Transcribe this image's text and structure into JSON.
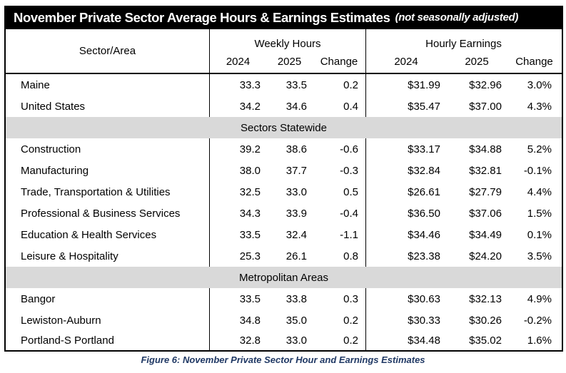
{
  "title": {
    "main": "November Private Sector Average Hours & Earnings Estimates",
    "note": "(not seasonally adjusted)"
  },
  "header": {
    "sector_area": "Sector/Area",
    "weekly_hours": "Weekly Hours",
    "hourly_earnings": "Hourly Earnings",
    "sub": [
      "2024",
      "2025",
      "Change"
    ]
  },
  "sections": [
    {
      "heading": null,
      "rows": [
        {
          "name": "Maine",
          "weekly": [
            "33.3",
            "33.5",
            "0.2"
          ],
          "earnings": [
            "$31.99",
            "$32.96",
            "3.0%"
          ]
        },
        {
          "name": "United States",
          "weekly": [
            "34.2",
            "34.6",
            "0.4"
          ],
          "earnings": [
            "$35.47",
            "$37.00",
            "4.3%"
          ]
        }
      ]
    },
    {
      "heading": "Sectors Statewide",
      "rows": [
        {
          "name": "Construction",
          "weekly": [
            "39.2",
            "38.6",
            "-0.6"
          ],
          "earnings": [
            "$33.17",
            "$34.88",
            "5.2%"
          ]
        },
        {
          "name": "Manufacturing",
          "weekly": [
            "38.0",
            "37.7",
            "-0.3"
          ],
          "earnings": [
            "$32.84",
            "$32.81",
            "-0.1%"
          ]
        },
        {
          "name": "Trade, Transportation & Utilities",
          "weekly": [
            "32.5",
            "33.0",
            "0.5"
          ],
          "earnings": [
            "$26.61",
            "$27.79",
            "4.4%"
          ]
        },
        {
          "name": "Professional & Business Services",
          "weekly": [
            "34.3",
            "33.9",
            "-0.4"
          ],
          "earnings": [
            "$36.50",
            "$37.06",
            "1.5%"
          ]
        },
        {
          "name": "Education & Health Services",
          "weekly": [
            "33.5",
            "32.4",
            "-1.1"
          ],
          "earnings": [
            "$34.46",
            "$34.49",
            "0.1%"
          ]
        },
        {
          "name": "Leisure & Hospitality",
          "weekly": [
            "25.3",
            "26.1",
            "0.8"
          ],
          "earnings": [
            "$23.38",
            "$24.20",
            "3.5%"
          ]
        }
      ]
    },
    {
      "heading": "Metropolitan Areas",
      "rows": [
        {
          "name": "Bangor",
          "weekly": [
            "33.5",
            "33.8",
            "0.3"
          ],
          "earnings": [
            "$30.63",
            "$32.13",
            "4.9%"
          ]
        },
        {
          "name": "Lewiston-Auburn",
          "weekly": [
            "34.8",
            "35.0",
            "0.2"
          ],
          "earnings": [
            "$30.33",
            "$30.26",
            "-0.2%"
          ]
        },
        {
          "name": "Portland-S Portland",
          "weekly": [
            "32.8",
            "33.0",
            "0.2"
          ],
          "earnings": [
            "$34.48",
            "$35.02",
            "1.6%"
          ]
        }
      ]
    }
  ],
  "caption": {
    "text": "Figure 6: November Private Sector Hour and Earnings Estimates"
  },
  "colors": {
    "title_bg": "#000000",
    "title_fg": "#FFFFFF",
    "band_bg": "#D9D9D9",
    "caption_fg": "#1F3864",
    "border": "#000000"
  }
}
